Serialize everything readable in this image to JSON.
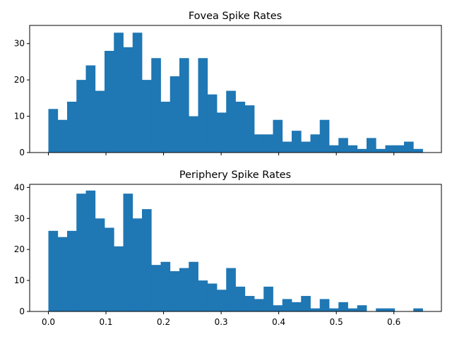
{
  "chart_data": [
    {
      "type": "bar",
      "title": "Fovea Spike Rates",
      "xlabel": "",
      "ylabel": "",
      "bin_start": 0.0,
      "bin_width": 0.01625,
      "values": [
        12,
        9,
        14,
        20,
        24,
        17,
        28,
        33,
        29,
        33,
        20,
        26,
        14,
        21,
        26,
        10,
        26,
        16,
        11,
        17,
        14,
        13,
        5,
        5,
        9,
        3,
        6,
        3,
        5,
        9,
        2,
        4,
        2,
        1,
        4,
        1,
        2,
        2,
        3,
        1
      ],
      "xlim": [
        -0.0325,
        0.6825
      ],
      "ylim": [
        0,
        35
      ],
      "xticks": [
        0.0,
        0.1,
        0.2,
        0.3,
        0.4,
        0.5,
        0.6
      ],
      "yticks": [
        0,
        10,
        20,
        30
      ],
      "ytick_labels": [
        "0",
        "10",
        "20",
        "30"
      ],
      "show_xtick_labels": false,
      "color": "#1f77b4"
    },
    {
      "type": "bar",
      "title": "Periphery Spike Rates",
      "xlabel": "",
      "ylabel": "",
      "bin_start": 0.0,
      "bin_width": 0.01625,
      "values": [
        26,
        24,
        26,
        38,
        39,
        30,
        27,
        21,
        38,
        30,
        33,
        15,
        16,
        13,
        14,
        16,
        10,
        9,
        7,
        14,
        8,
        5,
        4,
        8,
        2,
        4,
        3,
        5,
        1,
        4,
        1,
        3,
        1,
        2,
        0,
        1,
        1,
        0,
        0,
        1
      ],
      "xlim": [
        -0.0325,
        0.6825
      ],
      "ylim": [
        0,
        41
      ],
      "xticks": [
        0.0,
        0.1,
        0.2,
        0.3,
        0.4,
        0.5,
        0.6
      ],
      "xtick_labels": [
        "0.0",
        "0.1",
        "0.2",
        "0.3",
        "0.4",
        "0.5",
        "0.6"
      ],
      "yticks": [
        0,
        10,
        20,
        30,
        40
      ],
      "ytick_labels": [
        "0",
        "10",
        "20",
        "30",
        "40"
      ],
      "show_xtick_labels": true,
      "color": "#1f77b4"
    }
  ]
}
